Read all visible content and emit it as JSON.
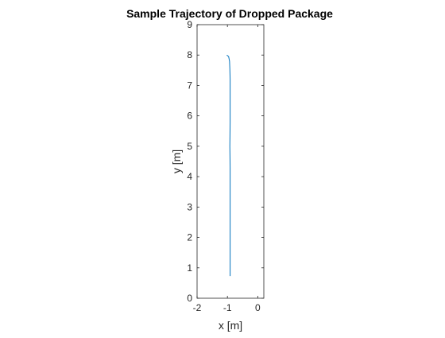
{
  "chart_data": {
    "type": "line",
    "title": "Sample Trajectory of Dropped Package",
    "xlabel": "x [m]",
    "ylabel": "y [m]",
    "xlim": [
      -2,
      0.2
    ],
    "ylim": [
      0,
      9
    ],
    "x_ticks": [
      -2,
      -1,
      0
    ],
    "y_ticks": [
      0,
      1,
      2,
      3,
      4,
      5,
      6,
      7,
      8,
      9
    ],
    "grid": false,
    "series_color": "#0072BD",
    "series": [
      {
        "x": [
          -1.02,
          -0.96,
          -0.93,
          -0.92,
          -0.91,
          -0.91,
          -0.91,
          -0.91,
          -0.92,
          -0.91,
          -0.91,
          -0.91,
          -0.91,
          -0.91,
          -0.91,
          -0.91,
          -0.91
        ],
        "y": [
          8.0,
          7.95,
          7.8,
          7.55,
          7.2,
          6.8,
          6.3,
          5.8,
          5.0,
          4.3,
          4.0,
          3.5,
          3.0,
          2.5,
          2.0,
          1.5,
          0.73
        ]
      }
    ]
  }
}
